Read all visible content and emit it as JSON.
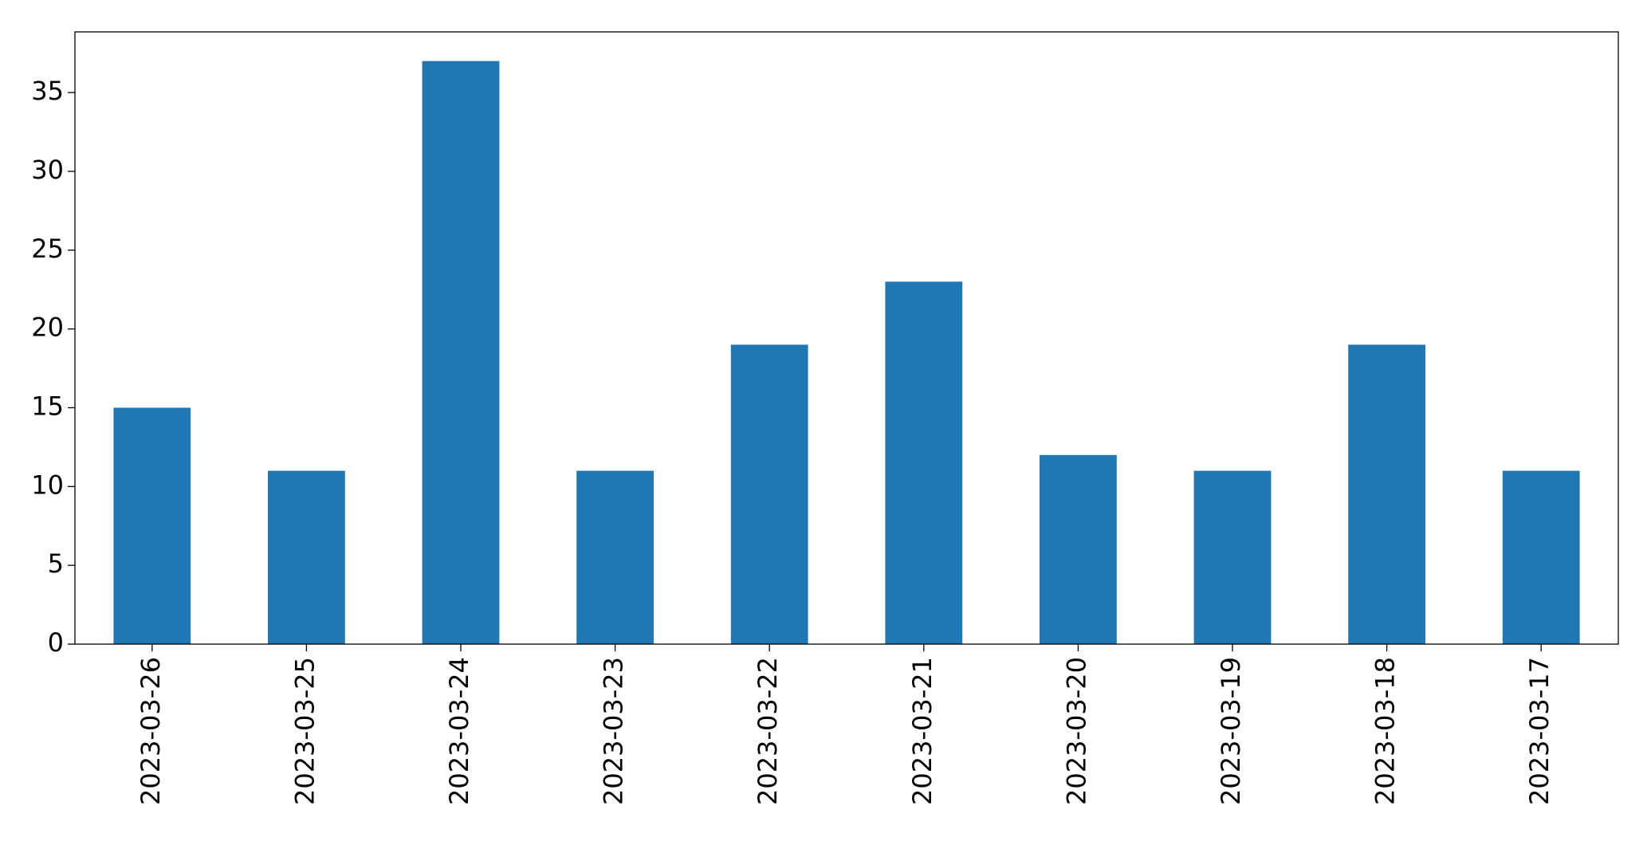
{
  "chart_data": {
    "type": "bar",
    "categories": [
      "2023-03-26",
      "2023-03-25",
      "2023-03-24",
      "2023-03-23",
      "2023-03-22",
      "2023-03-21",
      "2023-03-20",
      "2023-03-19",
      "2023-03-18",
      "2023-03-17"
    ],
    "values": [
      15,
      11,
      37,
      11,
      19,
      23,
      12,
      11,
      19,
      11
    ],
    "color": "#1f77b4",
    "ylim": [
      0,
      38.85
    ],
    "yticks": [
      0,
      5,
      10,
      15,
      20,
      25,
      30,
      35
    ],
    "grid": false
  }
}
